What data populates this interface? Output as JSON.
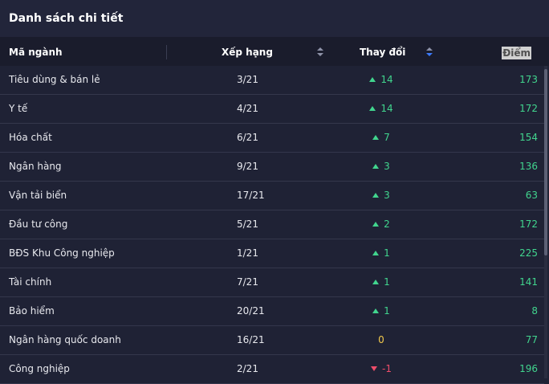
{
  "panel": {
    "title": "Danh sách chi tiết"
  },
  "columns": {
    "code": "Mã ngành",
    "rank": "Xếp hạng",
    "change": "Thay đổi",
    "score": "Điểm"
  },
  "rows": [
    {
      "name": "Tiêu dùng & bán lẻ",
      "rank": "3/21",
      "change": "14",
      "dir": "up",
      "score": "173"
    },
    {
      "name": "Y tế",
      "rank": "4/21",
      "change": "14",
      "dir": "up",
      "score": "172"
    },
    {
      "name": "Hóa chất",
      "rank": "6/21",
      "change": "7",
      "dir": "up",
      "score": "154"
    },
    {
      "name": "Ngân hàng",
      "rank": "9/21",
      "change": "3",
      "dir": "up",
      "score": "136"
    },
    {
      "name": "Vận tải biển",
      "rank": "17/21",
      "change": "3",
      "dir": "up",
      "score": "63"
    },
    {
      "name": "Đầu tư công",
      "rank": "5/21",
      "change": "2",
      "dir": "up",
      "score": "172"
    },
    {
      "name": "BĐS Khu Công nghiệp",
      "rank": "1/21",
      "change": "1",
      "dir": "up",
      "score": "225"
    },
    {
      "name": "Tài chính",
      "rank": "7/21",
      "change": "1",
      "dir": "up",
      "score": "141"
    },
    {
      "name": "Bảo hiểm",
      "rank": "20/21",
      "change": "1",
      "dir": "up",
      "score": "8"
    },
    {
      "name": "Ngân hàng quốc doanh",
      "rank": "16/21",
      "change": "0",
      "dir": "none",
      "score": "77"
    },
    {
      "name": "Công nghiệp",
      "rank": "2/21",
      "change": "-1",
      "dir": "down",
      "score": "196"
    }
  ],
  "colors": {
    "up": "#41d58e",
    "down": "#ee4d6a",
    "zero": "#f2c94c",
    "sort_active": "#3b7bff"
  }
}
